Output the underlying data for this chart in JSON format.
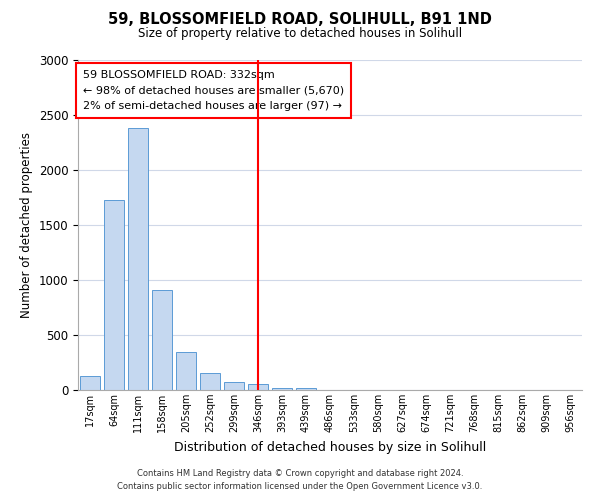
{
  "title": "59, BLOSSOMFIELD ROAD, SOLIHULL, B91 1ND",
  "subtitle": "Size of property relative to detached houses in Solihull",
  "xlabel": "Distribution of detached houses by size in Solihull",
  "ylabel": "Number of detached properties",
  "bin_labels": [
    "17sqm",
    "64sqm",
    "111sqm",
    "158sqm",
    "205sqm",
    "252sqm",
    "299sqm",
    "346sqm",
    "393sqm",
    "439sqm",
    "486sqm",
    "533sqm",
    "580sqm",
    "627sqm",
    "674sqm",
    "721sqm",
    "768sqm",
    "815sqm",
    "862sqm",
    "909sqm",
    "956sqm"
  ],
  "bar_values": [
    125,
    1730,
    2380,
    910,
    345,
    155,
    75,
    55,
    20,
    15,
    0,
    0,
    0,
    0,
    0,
    0,
    0,
    0,
    0,
    0,
    0
  ],
  "bar_color": "#c5d8f0",
  "bar_edge_color": "#5b9bd5",
  "vline_x_idx": 7,
  "vline_color": "red",
  "ylim": [
    0,
    3000
  ],
  "yticks": [
    0,
    500,
    1000,
    1500,
    2000,
    2500,
    3000
  ],
  "annotation_title": "59 BLOSSOMFIELD ROAD: 332sqm",
  "annotation_line1": "← 98% of detached houses are smaller (5,670)",
  "annotation_line2": "2% of semi-detached houses are larger (97) →",
  "footnote1": "Contains HM Land Registry data © Crown copyright and database right 2024.",
  "footnote2": "Contains public sector information licensed under the Open Government Licence v3.0.",
  "grid_color": "#d0d8e8"
}
